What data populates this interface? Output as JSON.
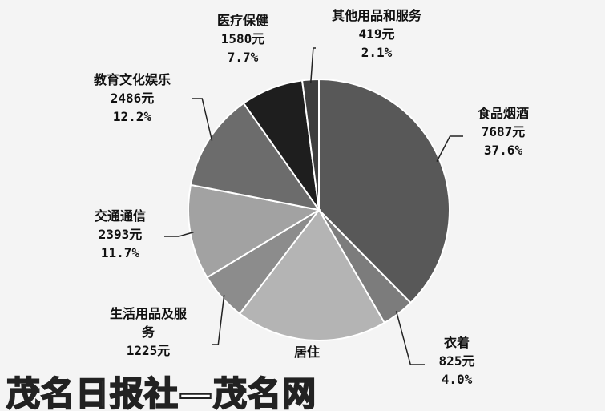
{
  "chart_data": {
    "type": "pie",
    "categories": [
      "食品烟酒",
      "衣着",
      "居住",
      "生活用品及服务",
      "交通通信",
      "教育文化娱乐",
      "医疗保健",
      "其他用品和服务"
    ],
    "values": [
      7687,
      825,
      3829,
      1225,
      2393,
      2486,
      1580,
      419
    ],
    "value_labels": [
      "7687元",
      "825元",
      null,
      "1225元",
      "2393元",
      "2486元",
      "1580元",
      "419元"
    ],
    "percent_labels": [
      "37.6%",
      "4.0%",
      null,
      null,
      "11.7%",
      "12.2%",
      "7.7%",
      "2.1%"
    ],
    "colors": [
      "#585858",
      "#7c7c7c",
      "#b4b4b4",
      "#8c8c8c",
      "#a2a2a2",
      "#6c6c6c",
      "#1e1e1e",
      "#3e3e3e"
    ],
    "watermark": "茂名日报社—茂名网"
  }
}
